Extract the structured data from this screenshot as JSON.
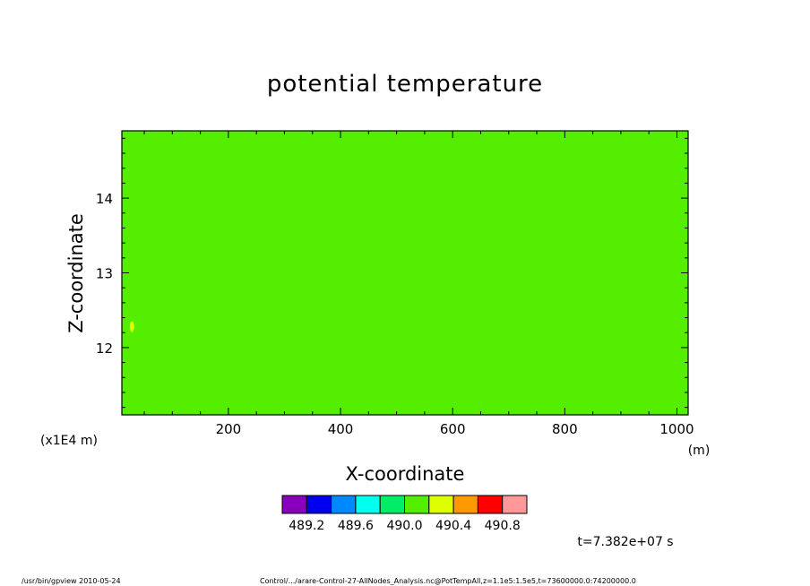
{
  "chart_data": {
    "type": "heatmap",
    "title": "potential temperature",
    "xlabel": "X-coordinate",
    "ylabel": "Z-coordinate",
    "x_unit": "(m)",
    "y_scale_note": "(x1E4 m)",
    "xlim": [
      10,
      1020
    ],
    "ylim": [
      11.1,
      14.9
    ],
    "x_ticks": [
      200,
      400,
      600,
      800,
      1000
    ],
    "y_ticks": [
      12,
      13,
      14
    ],
    "fill_value": 490.1,
    "fill_color": "#55ee00",
    "feature": {
      "x": 28,
      "y": 12.28,
      "value": 490.3,
      "color": "#ddff00"
    },
    "colorbar": {
      "colors": [
        "#8800bb",
        "#0000ee",
        "#0088ff",
        "#00ffee",
        "#00ee66",
        "#55ee00",
        "#ddff00",
        "#ff9900",
        "#ff0000",
        "#ff9999"
      ],
      "labels": [
        "489.2",
        "489.6",
        "490.0",
        "490.4",
        "490.8"
      ]
    },
    "time_label": "t=7.382e+07 s"
  },
  "footer": {
    "left": "/usr/bin/gpview   2010-05-24",
    "right": "Control/.../arare-Control-27-AllNodes_Analysis.nc@PotTempAll,z=1.1e5:1.5e5,t=73600000.0:74200000.0"
  }
}
